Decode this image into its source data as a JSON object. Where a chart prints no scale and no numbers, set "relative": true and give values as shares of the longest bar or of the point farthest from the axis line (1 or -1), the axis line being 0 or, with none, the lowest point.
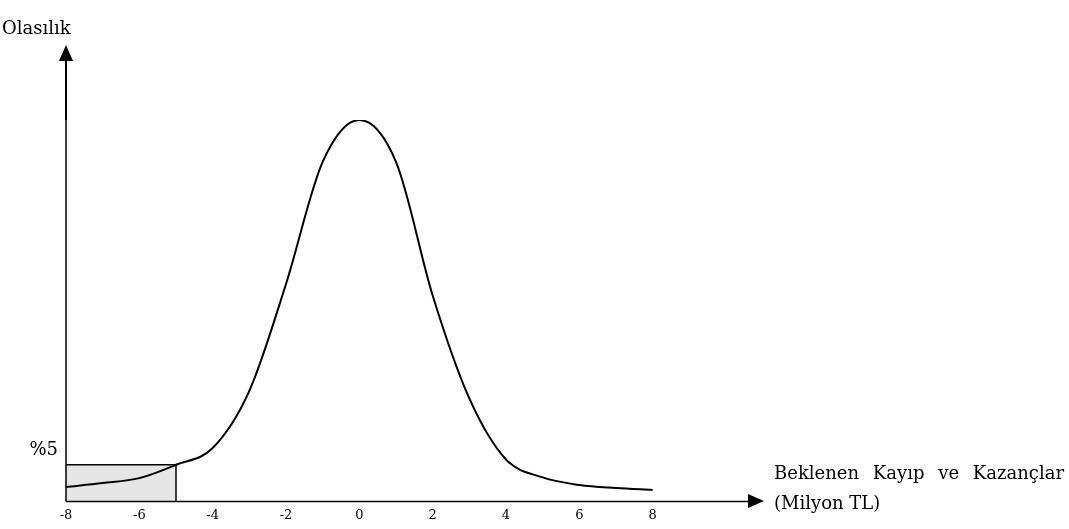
{
  "chart_data": {
    "type": "line",
    "relative": true,
    "ylabel": "Olasılık",
    "xlabel": "Beklenen Kayıp ve Kazançlar (Milyon TL)",
    "x": [
      -8,
      -7,
      -6,
      -5,
      -4,
      -3,
      -2,
      -1,
      0,
      1,
      2,
      3,
      4,
      5,
      6,
      7,
      8
    ],
    "series": [
      {
        "color": "#000000",
        "values": [
          0.038,
          0.048,
          0.061,
          0.096,
          0.14,
          0.29,
          0.57,
          0.89,
          1,
          0.89,
          0.54,
          0.27,
          0.11,
          0.063,
          0.043,
          0.035,
          0.03
        ]
      }
    ],
    "xlim": [
      -8,
      10.6
    ],
    "xticks": [
      -8,
      -6,
      -4,
      -2,
      0,
      2,
      4,
      6,
      8
    ],
    "ref_lines": [
      {
        "axis": "y",
        "value": 0.096
      },
      {
        "axis": "x",
        "value": -5
      }
    ],
    "bands": [
      {
        "axis": "x",
        "from": -8,
        "to": -5,
        "color": "#e6e6e6"
      }
    ],
    "annotations": [
      "%5"
    ],
    "grid": false,
    "legend": false,
    "marker": "none",
    "line_style": "solid"
  }
}
